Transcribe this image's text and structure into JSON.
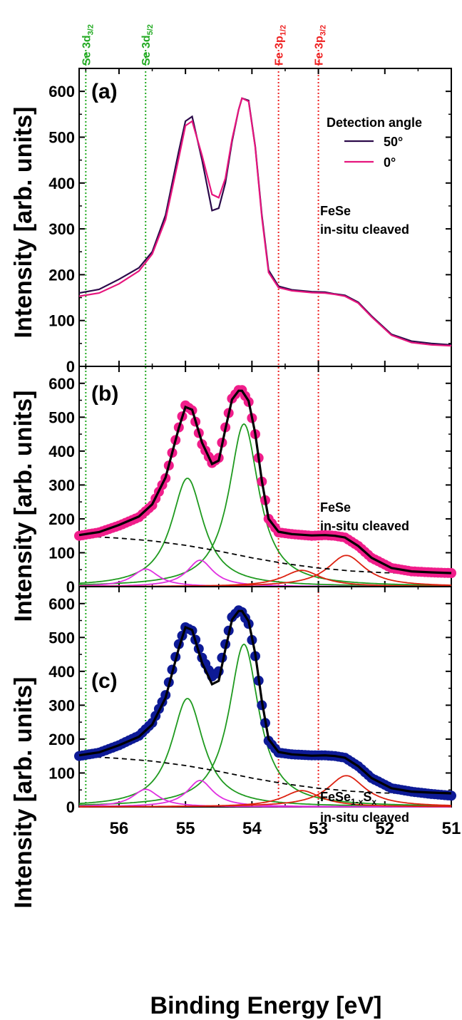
{
  "colors": {
    "line50": "#2b0a4a",
    "line0": "#e6157d",
    "pinkDots": "#f01d8a",
    "blueDots": "#0d1a96",
    "fit": "#000000",
    "green": "#1f9a1f",
    "magenta": "#e030e0",
    "red": "#dd2211",
    "background": "#000000",
    "guideGreen": "#22aa22",
    "guideRed": "#ee2222"
  },
  "reference_lines": [
    {
      "pre": "Se 3d",
      "sub": "3/2",
      "x": 56.5,
      "color": "green"
    },
    {
      "pre": "Se 3d",
      "sub": "5/2",
      "x": 55.6,
      "color": "green"
    },
    {
      "pre": "Fe 3p",
      "sub": "1/2",
      "x": 53.6,
      "color": "red"
    },
    {
      "pre": "Fe 3p",
      "sub": "3/2",
      "x": 53.0,
      "color": "red"
    }
  ],
  "axes": {
    "xlabel": "Binding Energy [eV]",
    "ylabel": "Intensity [arb. units]",
    "x_ticks": [
      "56",
      "55",
      "54",
      "53",
      "52",
      "51"
    ],
    "y_ticks": [
      "0",
      "100",
      "200",
      "300",
      "400",
      "500",
      "600"
    ]
  },
  "panels": {
    "a": {
      "label": "(a)",
      "legend_title": "Detection angle",
      "legend_items": [
        "50°",
        "0°"
      ],
      "sample_line1": "FeSe",
      "sample_line2": "in-situ cleaved"
    },
    "b": {
      "label": "(b)",
      "sample_line1": "FeSe",
      "sample_line2": "in-situ cleaved"
    },
    "c": {
      "label": "(c)",
      "sample_base": "FeSe",
      "sample_sub1": "1-x",
      "sample_mid": "S",
      "sample_sub2": "x",
      "sample_line2": "in-situ cleaved"
    }
  },
  "chart_data": [
    {
      "type": "line",
      "panel": "(a)",
      "xlim": [
        56.6,
        51.0
      ],
      "ylim": [
        0,
        650
      ],
      "grid": false,
      "legend_placement": "top-right",
      "series": [
        {
          "name": "50°",
          "x": [
            56.6,
            56.3,
            56.0,
            55.7,
            55.5,
            55.3,
            55.1,
            55.0,
            54.9,
            54.75,
            54.6,
            54.5,
            54.4,
            54.3,
            54.2,
            54.15,
            54.05,
            53.95,
            53.85,
            53.75,
            53.6,
            53.4,
            53.1,
            52.9,
            52.75,
            52.6,
            52.4,
            52.2,
            51.9,
            51.6,
            51.3,
            51.0
          ],
          "y": [
            160,
            168,
            190,
            215,
            250,
            330,
            470,
            535,
            545,
            450,
            340,
            345,
            400,
            490,
            560,
            585,
            580,
            480,
            330,
            210,
            175,
            167,
            163,
            162,
            158,
            155,
            140,
            110,
            70,
            55,
            50,
            47
          ]
        },
        {
          "name": "0°",
          "x": [
            56.6,
            56.3,
            56.0,
            55.7,
            55.5,
            55.3,
            55.1,
            55.0,
            54.9,
            54.75,
            54.6,
            54.5,
            54.4,
            54.3,
            54.2,
            54.15,
            54.05,
            53.95,
            53.85,
            53.75,
            53.6,
            53.4,
            53.1,
            52.9,
            52.75,
            52.6,
            52.4,
            52.2,
            51.9,
            51.6,
            51.3,
            51.0
          ],
          "y": [
            153,
            160,
            180,
            208,
            245,
            320,
            455,
            525,
            535,
            460,
            375,
            368,
            410,
            495,
            560,
            585,
            578,
            478,
            325,
            205,
            172,
            165,
            161,
            160,
            157,
            153,
            138,
            108,
            68,
            52,
            47,
            45
          ]
        }
      ]
    },
    {
      "type": "scatter",
      "panel": "(b)",
      "xlim": [
        56.6,
        51.0
      ],
      "ylim": [
        0,
        650
      ],
      "series": [
        {
          "name": "FeSe data",
          "x": [
            56.6,
            56.3,
            56.0,
            55.7,
            55.5,
            55.3,
            55.1,
            55.0,
            54.9,
            54.75,
            54.6,
            54.5,
            54.4,
            54.3,
            54.2,
            54.15,
            54.05,
            53.95,
            53.85,
            53.75,
            53.6,
            53.4,
            53.1,
            52.9,
            52.75,
            52.6,
            52.4,
            52.2,
            51.9,
            51.6,
            51.3,
            51.0
          ],
          "y": [
            150,
            160,
            180,
            205,
            240,
            320,
            470,
            535,
            520,
            420,
            365,
            380,
            470,
            555,
            580,
            580,
            545,
            450,
            310,
            200,
            160,
            155,
            150,
            152,
            150,
            145,
            120,
            85,
            55,
            45,
            42,
            40
          ]
        },
        {
          "name": "fit",
          "x": [
            56.6,
            56.3,
            56.0,
            55.7,
            55.5,
            55.3,
            55.1,
            55.0,
            54.9,
            54.75,
            54.6,
            54.5,
            54.4,
            54.3,
            54.2,
            54.15,
            54.05,
            53.95,
            53.85,
            53.75,
            53.6,
            53.4,
            53.1,
            52.9,
            52.75,
            52.6,
            52.4,
            52.2,
            51.9,
            51.6,
            51.3,
            51.0
          ],
          "y": [
            152,
            161,
            182,
            207,
            243,
            322,
            468,
            530,
            522,
            425,
            362,
            372,
            465,
            552,
            578,
            578,
            548,
            452,
            312,
            200,
            162,
            155,
            151,
            152,
            150,
            145,
            120,
            85,
            55,
            45,
            42,
            40
          ]
        },
        {
          "name": "background",
          "x": [
            56.6,
            56.0,
            55.5,
            55.0,
            54.5,
            54.0,
            53.5,
            53.0,
            52.5,
            52.0,
            51.5,
            51.0
          ],
          "y": [
            150,
            143,
            135,
            122,
            105,
            85,
            68,
            55,
            46,
            41,
            39,
            38
          ]
        }
      ],
      "components": [
        {
          "color": "green",
          "center": 54.97,
          "height": 320,
          "width": 0.32
        },
        {
          "color": "green",
          "center": 54.12,
          "height": 480,
          "width": 0.3
        },
        {
          "color": "magenta",
          "center": 55.6,
          "height": 52,
          "width": 0.26
        },
        {
          "color": "magenta",
          "center": 54.78,
          "height": 78,
          "width": 0.26
        },
        {
          "color": "red",
          "center": 53.25,
          "height": 48,
          "width": 0.38
        },
        {
          "color": "red",
          "center": 52.58,
          "height": 92,
          "width": 0.38
        }
      ]
    },
    {
      "type": "scatter",
      "panel": "(c)",
      "xlim": [
        56.6,
        51.0
      ],
      "ylim": [
        0,
        650
      ],
      "series": [
        {
          "name": "FeSe1-xSx data",
          "x": [
            56.6,
            56.3,
            56.0,
            55.7,
            55.5,
            55.3,
            55.1,
            55.0,
            54.9,
            54.75,
            54.6,
            54.5,
            54.4,
            54.3,
            54.2,
            54.15,
            54.05,
            53.95,
            53.85,
            53.75,
            53.6,
            53.4,
            53.1,
            52.9,
            52.75,
            52.6,
            52.4,
            52.2,
            51.9,
            51.6,
            51.3,
            51.0
          ],
          "y": [
            150,
            160,
            182,
            210,
            248,
            330,
            480,
            530,
            520,
            440,
            385,
            400,
            480,
            560,
            580,
            575,
            540,
            445,
            300,
            195,
            160,
            155,
            152,
            152,
            150,
            145,
            120,
            85,
            55,
            45,
            38,
            33
          ]
        },
        {
          "name": "fit",
          "x": [
            56.6,
            56.3,
            56.0,
            55.7,
            55.5,
            55.3,
            55.1,
            55.0,
            54.9,
            54.75,
            54.6,
            54.5,
            54.4,
            54.3,
            54.2,
            54.15,
            54.05,
            53.95,
            53.85,
            53.75,
            53.6,
            53.4,
            53.1,
            52.9,
            52.75,
            52.6,
            52.4,
            52.2,
            51.9,
            51.6,
            51.3,
            51.0
          ],
          "y": [
            152,
            161,
            182,
            207,
            243,
            322,
            468,
            530,
            522,
            425,
            362,
            372,
            465,
            552,
            578,
            578,
            548,
            452,
            312,
            200,
            162,
            155,
            151,
            152,
            150,
            145,
            120,
            85,
            55,
            45,
            42,
            40
          ]
        },
        {
          "name": "background",
          "x": [
            56.6,
            56.0,
            55.5,
            55.0,
            54.5,
            54.0,
            53.5,
            53.0,
            52.5,
            52.0,
            51.5,
            51.0
          ],
          "y": [
            150,
            143,
            135,
            122,
            105,
            85,
            68,
            55,
            46,
            41,
            39,
            38
          ]
        }
      ],
      "components": [
        {
          "color": "green",
          "center": 54.97,
          "height": 320,
          "width": 0.32
        },
        {
          "color": "green",
          "center": 54.12,
          "height": 480,
          "width": 0.3
        },
        {
          "color": "magenta",
          "center": 55.6,
          "height": 52,
          "width": 0.26
        },
        {
          "color": "magenta",
          "center": 54.78,
          "height": 78,
          "width": 0.26
        },
        {
          "color": "red",
          "center": 53.25,
          "height": 48,
          "width": 0.38
        },
        {
          "color": "red",
          "center": 52.58,
          "height": 92,
          "width": 0.38
        }
      ]
    }
  ]
}
